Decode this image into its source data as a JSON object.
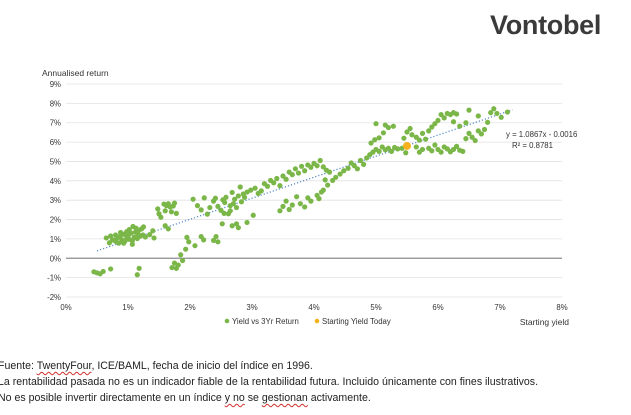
{
  "brand": {
    "name": "Vontobel"
  },
  "chart_data": {
    "type": "scatter",
    "title": "",
    "ylabel": "Annualised return",
    "xlabel": "Starting yield",
    "xlim": [
      0,
      0.08
    ],
    "ylim": [
      -0.02,
      0.09
    ],
    "x_ticks": [
      "0%",
      "1%",
      "2%",
      "3%",
      "4%",
      "5%",
      "6%",
      "7%",
      "8%"
    ],
    "y_ticks": [
      "-2%",
      "-1%",
      "0%",
      "1%",
      "2%",
      "3%",
      "4%",
      "5%",
      "6%",
      "7%",
      "8%",
      "9%"
    ],
    "grid": "horizontal",
    "legend_position": "bottom",
    "colors": {
      "series": "#7ab648",
      "highlight": "#f5b21c",
      "trend": "#5a8fc8",
      "grid": "#e2e2e2",
      "zero_line": "#8c8c8c"
    },
    "trendline": {
      "label_eq": "y = 1.0867x - 0.0016",
      "label_r2": "R² = 0.8781",
      "slope": 1.0867,
      "intercept": -0.0016,
      "x_range": [
        0.005,
        0.072
      ]
    },
    "series": [
      {
        "name": "Yield vs 3Yr Return",
        "points": [
          [
            0.0045,
            -0.007
          ],
          [
            0.005,
            -0.0075
          ],
          [
            0.0055,
            -0.008
          ],
          [
            0.006,
            -0.0068
          ],
          [
            0.0065,
            0.0105
          ],
          [
            0.007,
            0.008
          ],
          [
            0.0072,
            0.0115
          ],
          [
            0.0075,
            0.0095
          ],
          [
            0.008,
            0.0088
          ],
          [
            0.008,
            0.012
          ],
          [
            0.0082,
            0.0103
          ],
          [
            0.0085,
            0.0078
          ],
          [
            0.0087,
            0.0112
          ],
          [
            0.009,
            0.0095
          ],
          [
            0.0093,
            0.0124
          ],
          [
            0.0095,
            0.0088
          ],
          [
            0.0098,
            0.0105
          ],
          [
            0.01,
            0.0115
          ],
          [
            0.0102,
            0.0098
          ],
          [
            0.0105,
            0.013
          ],
          [
            0.0107,
            0.009
          ],
          [
            0.011,
            0.0108
          ],
          [
            0.0112,
            0.0135
          ],
          [
            0.0115,
            0.0102
          ],
          [
            0.0118,
            0.0145
          ],
          [
            0.012,
            0.0115
          ],
          [
            0.0122,
            0.0152
          ],
          [
            0.0125,
            0.0162
          ],
          [
            0.0128,
            0.011
          ],
          [
            0.0108,
            0.0164
          ],
          [
            0.0113,
            0.0155
          ],
          [
            0.0116,
            0.0125
          ],
          [
            0.0098,
            0.0138
          ],
          [
            0.0102,
            0.0148
          ],
          [
            0.0088,
            0.0133
          ],
          [
            0.0093,
            0.0078
          ],
          [
            0.0107,
            0.0072
          ],
          [
            0.0124,
            0.012
          ],
          [
            0.0072,
            -0.0055
          ],
          [
            0.0118,
            -0.0052
          ],
          [
            0.0115,
            -0.0085
          ],
          [
            0.0135,
            0.0122
          ],
          [
            0.014,
            0.0142
          ],
          [
            0.0142,
            0.0105
          ],
          [
            0.0148,
            0.0255
          ],
          [
            0.015,
            0.023
          ],
          [
            0.0153,
            0.0212
          ],
          [
            0.0158,
            0.028
          ],
          [
            0.016,
            0.0245
          ],
          [
            0.0162,
            0.0272
          ],
          [
            0.0165,
            0.0282
          ],
          [
            0.017,
            0.024
          ],
          [
            0.0173,
            0.027
          ],
          [
            0.0175,
            0.0285
          ],
          [
            0.0178,
            0.0232
          ],
          [
            0.0168,
            0.0265
          ],
          [
            0.016,
            0.0168
          ],
          [
            0.0165,
            0.0152
          ],
          [
            0.0171,
            -0.0048
          ],
          [
            0.0175,
            -0.0025
          ],
          [
            0.0178,
            -0.0052
          ],
          [
            0.0181,
            -0.0035
          ],
          [
            0.0185,
            0.0018
          ],
          [
            0.0188,
            -0.0012
          ],
          [
            0.0193,
            0.0047
          ],
          [
            0.0195,
            0.0108
          ],
          [
            0.0198,
            0.0085
          ],
          [
            0.0208,
            0.0065
          ],
          [
            0.0218,
            0.0112
          ],
          [
            0.0222,
            0.0095
          ],
          [
            0.0205,
            0.0305
          ],
          [
            0.0212,
            0.0272
          ],
          [
            0.0218,
            0.025
          ],
          [
            0.0223,
            0.0312
          ],
          [
            0.0228,
            0.0228
          ],
          [
            0.0232,
            0.0262
          ],
          [
            0.0238,
            0.0295
          ],
          [
            0.0241,
            0.031
          ],
          [
            0.0245,
            0.0268
          ],
          [
            0.025,
            0.0248
          ],
          [
            0.0253,
            0.0302
          ],
          [
            0.0256,
            0.0288
          ],
          [
            0.0258,
            0.0315
          ],
          [
            0.0262,
            0.023
          ],
          [
            0.0265,
            0.0272
          ],
          [
            0.0268,
            0.034
          ],
          [
            0.027,
            0.0282
          ],
          [
            0.0272,
            0.0305
          ],
          [
            0.0275,
            0.0262
          ],
          [
            0.0278,
            0.0322
          ],
          [
            0.0281,
            0.0368
          ],
          [
            0.0283,
            0.0292
          ],
          [
            0.0286,
            0.0332
          ],
          [
            0.0288,
            0.0315
          ],
          [
            0.0255,
            0.0232
          ],
          [
            0.0265,
            0.0245
          ],
          [
            0.0275,
            0.0178
          ],
          [
            0.0278,
            0.0158
          ],
          [
            0.0292,
            0.0185
          ],
          [
            0.0302,
            0.0222
          ],
          [
            0.0252,
            0.0178
          ],
          [
            0.0268,
            0.0168
          ],
          [
            0.0242,
            0.0112
          ],
          [
            0.0245,
            0.0085
          ],
          [
            0.0238,
            0.0092
          ],
          [
            0.0292,
            0.0342
          ],
          [
            0.0298,
            0.0352
          ],
          [
            0.0305,
            0.0362
          ],
          [
            0.031,
            0.0335
          ],
          [
            0.0315,
            0.0348
          ],
          [
            0.032,
            0.0385
          ],
          [
            0.0325,
            0.0372
          ],
          [
            0.033,
            0.0402
          ],
          [
            0.0335,
            0.039
          ],
          [
            0.034,
            0.0412
          ],
          [
            0.0345,
            0.0375
          ],
          [
            0.035,
            0.0425
          ],
          [
            0.0355,
            0.0408
          ],
          [
            0.036,
            0.0445
          ],
          [
            0.0365,
            0.0432
          ],
          [
            0.037,
            0.0462
          ],
          [
            0.0375,
            0.044
          ],
          [
            0.038,
            0.0475
          ],
          [
            0.0385,
            0.0452
          ],
          [
            0.039,
            0.0482
          ],
          [
            0.0395,
            0.047
          ],
          [
            0.04,
            0.049
          ],
          [
            0.0405,
            0.0478
          ],
          [
            0.041,
            0.0505
          ],
          [
            0.0415,
            0.0472
          ],
          [
            0.042,
            0.0455
          ],
          [
            0.0425,
            0.0445
          ],
          [
            0.035,
            0.0268
          ],
          [
            0.0355,
            0.0295
          ],
          [
            0.036,
            0.0252
          ],
          [
            0.0372,
            0.0318
          ],
          [
            0.0378,
            0.0282
          ],
          [
            0.0385,
            0.0265
          ],
          [
            0.039,
            0.0312
          ],
          [
            0.0395,
            0.0295
          ],
          [
            0.0345,
            0.0245
          ],
          [
            0.0365,
            0.0275
          ],
          [
            0.0405,
            0.0325
          ],
          [
            0.0415,
            0.0352
          ],
          [
            0.0422,
            0.0378
          ],
          [
            0.0418,
            0.0405
          ],
          [
            0.0412,
            0.0342
          ],
          [
            0.0408,
            0.0308
          ],
          [
            0.043,
            0.0402
          ],
          [
            0.0435,
            0.0418
          ],
          [
            0.0442,
            0.0435
          ],
          [
            0.0448,
            0.0452
          ],
          [
            0.0455,
            0.0465
          ],
          [
            0.046,
            0.0492
          ],
          [
            0.0465,
            0.0478
          ],
          [
            0.047,
            0.0462
          ],
          [
            0.0475,
            0.0505
          ],
          [
            0.048,
            0.0485
          ],
          [
            0.0485,
            0.0518
          ],
          [
            0.049,
            0.0535
          ],
          [
            0.0495,
            0.0548
          ],
          [
            0.05,
            0.0562
          ],
          [
            0.0505,
            0.0552
          ],
          [
            0.051,
            0.0575
          ],
          [
            0.0515,
            0.056
          ],
          [
            0.052,
            0.0568
          ],
          [
            0.0525,
            0.0552
          ],
          [
            0.053,
            0.0572
          ],
          [
            0.0535,
            0.0565
          ],
          [
            0.0492,
            0.0595
          ],
          [
            0.0498,
            0.0612
          ],
          [
            0.0505,
            0.0622
          ],
          [
            0.0512,
            0.0648
          ],
          [
            0.052,
            0.0675
          ],
          [
            0.0528,
            0.0682
          ],
          [
            0.0545,
            0.062
          ],
          [
            0.055,
            0.0652
          ],
          [
            0.0555,
            0.067
          ],
          [
            0.0558,
            0.0638
          ],
          [
            0.05,
            0.0695
          ],
          [
            0.0515,
            0.0688
          ],
          [
            0.0565,
            0.0625
          ],
          [
            0.057,
            0.061
          ],
          [
            0.0575,
            0.0645
          ],
          [
            0.058,
            0.0615
          ],
          [
            0.0585,
            0.0658
          ],
          [
            0.059,
            0.0678
          ],
          [
            0.0595,
            0.0695
          ],
          [
            0.06,
            0.0712
          ],
          [
            0.0605,
            0.0742
          ],
          [
            0.061,
            0.0725
          ],
          [
            0.0615,
            0.0748
          ],
          [
            0.062,
            0.0742
          ],
          [
            0.0625,
            0.0752
          ],
          [
            0.063,
            0.0745
          ],
          [
            0.0585,
            0.0568
          ],
          [
            0.059,
            0.0555
          ],
          [
            0.0595,
            0.0585
          ],
          [
            0.06,
            0.0562
          ],
          [
            0.0605,
            0.0548
          ],
          [
            0.061,
            0.0575
          ],
          [
            0.0615,
            0.0565
          ],
          [
            0.062,
            0.055
          ],
          [
            0.0625,
            0.0562
          ],
          [
            0.063,
            0.0578
          ],
          [
            0.0635,
            0.0558
          ],
          [
            0.064,
            0.0552
          ],
          [
            0.0565,
            0.0575
          ],
          [
            0.057,
            0.0548
          ],
          [
            0.0575,
            0.0562
          ],
          [
            0.0645,
            0.0618
          ],
          [
            0.065,
            0.0645
          ],
          [
            0.0655,
            0.0625
          ],
          [
            0.066,
            0.0608
          ],
          [
            0.0665,
            0.0658
          ],
          [
            0.067,
            0.0642
          ],
          [
            0.0675,
            0.0665
          ],
          [
            0.068,
            0.0702
          ],
          [
            0.0685,
            0.0752
          ],
          [
            0.069,
            0.0772
          ],
          [
            0.0695,
            0.0748
          ],
          [
            0.0712,
            0.0755
          ],
          [
            0.0702,
            0.0728
          ],
          [
            0.065,
            0.0765
          ],
          [
            0.0665,
            0.0735
          ],
          [
            0.0635,
            0.0682
          ],
          [
            0.0645,
            0.07
          ],
          [
            0.0625,
            0.0705
          ],
          [
            0.0548,
            0.0545
          ],
          [
            0.0542,
            0.0568
          ]
        ]
      },
      {
        "name": "Starting Yield Today",
        "points": [
          [
            0.055,
            0.058
          ]
        ]
      }
    ]
  },
  "footer": {
    "source_prefix": "Fuente: ",
    "source_flagged": "TwentyFour",
    "source_rest": ", ICE/BAML, fecha de inicio del índice en 1996.",
    "line2": "La rentabilidad pasada no es un indicador fiable de la rentabilidad futura. Incluido únicamente con fines ilustrativos.",
    "line3_a": "No es posible invertir directamente en un índice ",
    "line3_b": "y no",
    "line3_c": " se ",
    "line3_d": "gestionan",
    "line3_e": " activamente."
  }
}
